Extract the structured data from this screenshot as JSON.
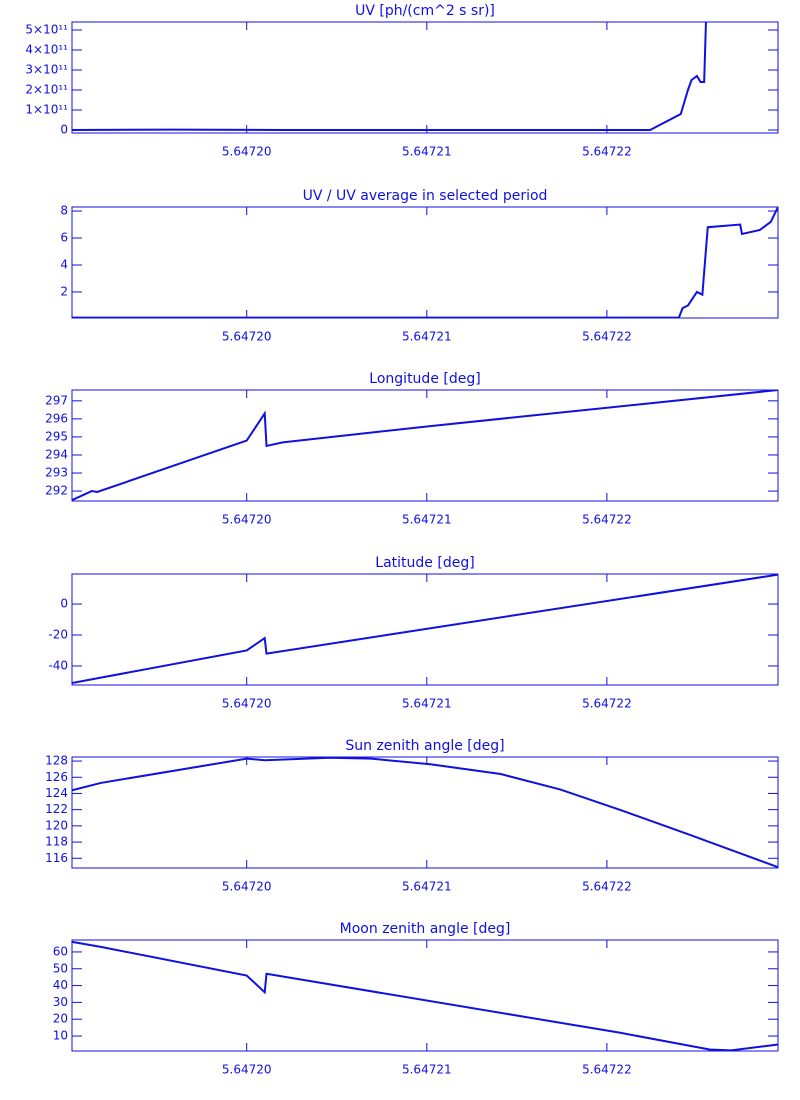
{
  "chart_data": [
    {
      "type": "line",
      "title": "UV [ph/(cm^2 s sr)]",
      "color": "#1010e0",
      "x": [
        5.6471903,
        5.647196,
        5.647202,
        5.6472224,
        5.6472241,
        5.6472243,
        5.6472245,
        5.6472247,
        5.647225,
        5.6472252,
        5.6472254,
        5.6472255
      ],
      "values": [
        0,
        2000000000,
        0,
        0,
        80000000000,
        140000000000,
        200000000000,
        250000000000,
        270000000000,
        240000000000,
        240000000000,
        540000000000
      ],
      "xlim": [
        5.6471903,
        5.6472295
      ],
      "xticks": [
        {
          "value": 5.6472,
          "label": "5.64720"
        },
        {
          "value": 5.64721,
          "label": "5.64721"
        },
        {
          "value": 5.64722,
          "label": "5.64722"
        }
      ],
      "ylim": [
        -15000000000,
        540000000000
      ],
      "yticks": [
        0,
        {
          "value": 100000000000,
          "label": "1×10¹¹"
        },
        {
          "value": 200000000000,
          "label": "2×10¹¹"
        },
        {
          "value": 300000000000,
          "label": "3×10¹¹"
        },
        {
          "value": 400000000000,
          "label": "4×10¹¹"
        },
        {
          "value": 500000000000,
          "label": "5×10¹¹"
        }
      ]
    },
    {
      "type": "line",
      "title": "UV / UV average in selected period",
      "color": "#1010e0",
      "x": [
        5.6471903,
        5.647224,
        5.6472242,
        5.6472245,
        5.647225,
        5.6472253,
        5.6472256,
        5.6472274,
        5.6472275,
        5.6472285,
        5.6472291,
        5.6472295
      ],
      "values": [
        0.1,
        0.1,
        0.8,
        1.0,
        2.0,
        1.8,
        6.8,
        7.0,
        6.3,
        6.6,
        7.2,
        8.3
      ],
      "xlim": [
        5.6471903,
        5.6472295
      ],
      "xticks": [
        {
          "value": 5.6472,
          "label": "5.64720"
        },
        {
          "value": 5.64721,
          "label": "5.64721"
        },
        {
          "value": 5.64722,
          "label": "5.64722"
        }
      ],
      "ylim": [
        0.07,
        8.3
      ],
      "yticks": [
        2,
        4,
        6,
        8
      ]
    },
    {
      "type": "line",
      "title": "Longitude [deg]",
      "color": "#1010e0",
      "x": [
        5.6471903,
        5.6471914,
        5.6471917,
        5.6472,
        5.647201,
        5.6472011,
        5.647202,
        5.6472102,
        5.6472295
      ],
      "values": [
        291.5,
        292.0,
        291.95,
        294.8,
        296.3,
        294.5,
        294.7,
        295.6,
        297.6
      ],
      "xlim": [
        5.6471903,
        5.6472295
      ],
      "xticks": [
        {
          "value": 5.6472,
          "label": "5.64720"
        },
        {
          "value": 5.64721,
          "label": "5.64721"
        },
        {
          "value": 5.64722,
          "label": "5.64722"
        }
      ],
      "ylim": [
        291.45,
        297.6
      ],
      "yticks": [
        292,
        293,
        294,
        295,
        296,
        297
      ]
    },
    {
      "type": "line",
      "title": "Latitude [deg]",
      "color": "#1010e0",
      "x": [
        5.6471903,
        5.6472,
        5.647201,
        5.6472011,
        5.6472295
      ],
      "values": [
        -51,
        -30,
        -22,
        -32,
        19
      ],
      "xlim": [
        5.6471903,
        5.6472295
      ],
      "xticks": [
        {
          "value": 5.6472,
          "label": "5.64720"
        },
        {
          "value": 5.64721,
          "label": "5.64721"
        },
        {
          "value": 5.64722,
          "label": "5.64722"
        }
      ],
      "ylim": [
        -52.3,
        19.4
      ],
      "yticks": [
        -40,
        -20,
        0
      ]
    },
    {
      "type": "line",
      "title": "Sun zenith angle [deg]",
      "color": "#1010e0",
      "x": [
        5.6471903,
        5.6471919,
        5.6472,
        5.647201,
        5.6472046,
        5.6472069,
        5.6472102,
        5.6472141,
        5.6472174,
        5.6472207,
        5.6472246,
        5.6472295
      ],
      "values": [
        124.4,
        125.3,
        128.3,
        128.1,
        128.4,
        128.3,
        127.6,
        126.4,
        124.5,
        122.0,
        118.9,
        114.9
      ],
      "xlim": [
        5.6471903,
        5.6472295
      ],
      "xticks": [
        {
          "value": 5.6472,
          "label": "5.64720"
        },
        {
          "value": 5.64721,
          "label": "5.64721"
        },
        {
          "value": 5.64722,
          "label": "5.64722"
        }
      ],
      "ylim": [
        114.8,
        128.5
      ],
      "yticks": [
        116,
        118,
        120,
        122,
        124,
        126,
        128
      ]
    },
    {
      "type": "line",
      "title": "Moon zenith angle [deg]",
      "color": "#1010e0",
      "x": [
        5.6471903,
        5.6471919,
        5.6472,
        5.647201,
        5.6472011,
        5.6472207,
        5.6472257,
        5.6472269,
        5.6472288,
        5.6472295
      ],
      "values": [
        66,
        63,
        46,
        36,
        47,
        12,
        2,
        1.5,
        4,
        5
      ],
      "xlim": [
        5.6471903,
        5.6472295
      ],
      "xticks": [
        {
          "value": 5.6472,
          "label": "5.64720"
        },
        {
          "value": 5.64721,
          "label": "5.64721"
        },
        {
          "value": 5.64722,
          "label": "5.64722"
        }
      ],
      "ylim": [
        1.1,
        67.1
      ],
      "yticks": [
        10,
        20,
        30,
        40,
        50,
        60
      ]
    }
  ]
}
